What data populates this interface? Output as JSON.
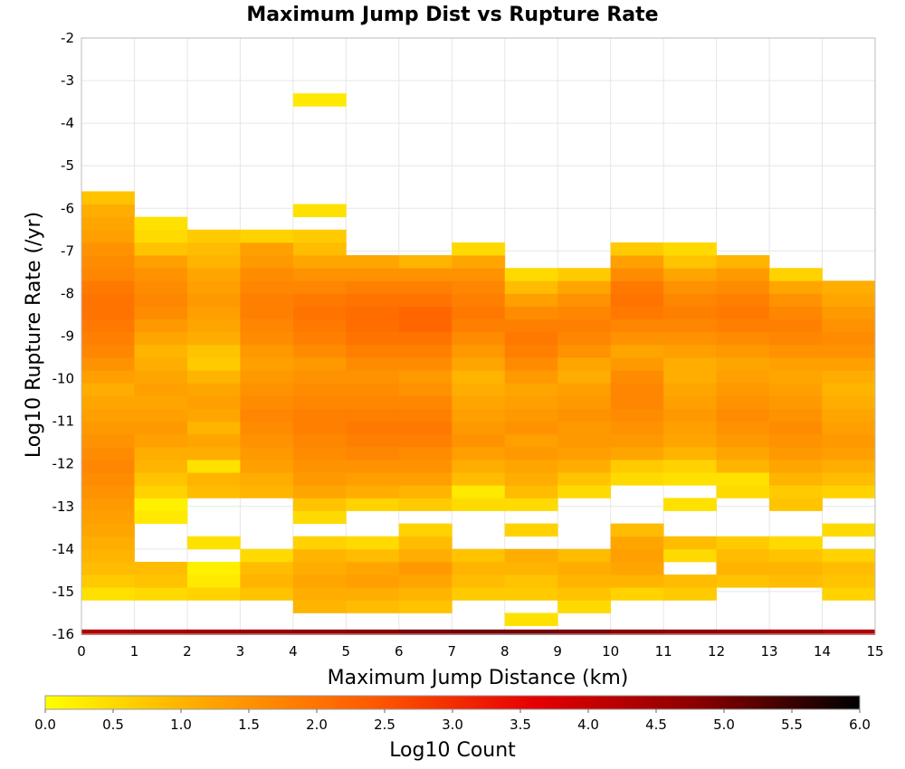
{
  "chart_data": {
    "type": "heatmap",
    "title": "Maximum Jump Dist vs Rupture Rate",
    "xlabel": "Maximum Jump Distance (km)",
    "ylabel": "Log10 Rupture Rate (/yr)",
    "colorbar_label": "Log10 Count",
    "xlim": [
      0,
      15
    ],
    "ylim": [
      -16,
      -2
    ],
    "x_ticks": [
      "0",
      "1",
      "2",
      "3",
      "4",
      "5",
      "6",
      "7",
      "8",
      "9",
      "10",
      "11",
      "12",
      "13",
      "14",
      "15"
    ],
    "y_ticks": [
      "-2",
      "-3",
      "-4",
      "-5",
      "-6",
      "-7",
      "-8",
      "-9",
      "-10",
      "-11",
      "-12",
      "-13",
      "-14",
      "-15",
      "-16"
    ],
    "colorbar_ticks": [
      "0.0",
      "0.5",
      "1.0",
      "1.5",
      "2.0",
      "2.5",
      "3.0",
      "3.5",
      "4.0",
      "4.5",
      "5.0",
      "5.5",
      "6.0"
    ],
    "color_range": [
      0,
      6
    ],
    "colormap": [
      "#ffff00",
      "#ffa500",
      "#ff5a00",
      "#e60000",
      "#8b0000",
      "#000000"
    ],
    "grid": true,
    "x_bin_width": 1,
    "y_bin_height": 0.3,
    "bin_columns": [
      {
        "x": 0.5,
        "y_start": -15.05,
        "values": [
          0.4,
          0.7,
          0.9,
          1.0,
          1.1,
          1.2,
          1.3,
          1.4,
          1.5,
          1.6,
          1.7,
          1.6,
          1.5,
          1.4,
          1.3,
          1.2,
          1.1,
          1.3,
          1.5,
          1.7,
          1.8,
          1.9,
          2.0,
          2.0,
          1.9,
          1.7,
          1.6,
          1.5,
          1.3,
          1.2,
          1.1,
          0.8
        ]
      },
      {
        "x": 1.5,
        "y_start": -15.05,
        "values": [
          0.5,
          0.8,
          0.9,
          0.0,
          0.0,
          0.0,
          0.3,
          0.2,
          0.6,
          0.8,
          1.0,
          1.1,
          1.3,
          1.4,
          1.3,
          1.2,
          1.3,
          1.2,
          1.1,
          1.0,
          1.2,
          1.4,
          1.6,
          1.7,
          1.6,
          1.5,
          1.3,
          0.8,
          0.5,
          0.4
        ]
      },
      {
        "x": 2.5,
        "y_start": -15.05,
        "values": [
          0.6,
          0.3,
          0.2,
          0.0,
          0.4,
          0.0,
          0.0,
          0.0,
          0.9,
          1.0,
          0.4,
          1.1,
          1.2,
          1.0,
          1.2,
          1.3,
          1.2,
          1.0,
          0.7,
          0.8,
          1.1,
          1.2,
          1.3,
          1.4,
          1.3,
          1.2,
          1.0,
          0.9,
          0.7
        ]
      },
      {
        "x": 3.5,
        "y_start": -15.05,
        "values": [
          0.8,
          1.0,
          0.9,
          0.5,
          0.0,
          0.0,
          0.0,
          0.0,
          1.0,
          1.1,
          1.3,
          1.4,
          1.5,
          1.6,
          1.7,
          1.6,
          1.5,
          1.4,
          1.3,
          1.4,
          1.6,
          1.7,
          1.8,
          1.8,
          1.7,
          1.6,
          1.4,
          1.3,
          0.6
        ]
      },
      {
        "x": 4.5,
        "y_start": -15.35,
        "values": [
          1.0,
          1.1,
          1.2,
          1.1,
          1.0,
          0.6,
          0.0,
          0.5,
          0.8,
          1.2,
          1.4,
          1.5,
          1.6,
          1.7,
          1.8,
          1.8,
          1.7,
          1.6,
          1.5,
          1.4,
          1.6,
          1.8,
          1.9,
          2.0,
          1.9,
          1.7,
          1.5,
          1.2,
          0.9,
          0.7,
          0.0,
          0.4
        ]
      },
      {
        "x": 5.5,
        "y_start": -15.35,
        "values": [
          0.9,
          1.1,
          1.3,
          1.2,
          0.9,
          0.5,
          0.0,
          0.0,
          0.6,
          1.1,
          1.3,
          1.5,
          1.7,
          1.8,
          1.9,
          1.8,
          1.7,
          1.6,
          1.5,
          1.6,
          1.8,
          2.0,
          2.1,
          2.1,
          2.0,
          1.8,
          1.5,
          1.2
        ]
      },
      {
        "x": 6.5,
        "y_start": -15.35,
        "values": [
          0.8,
          1.0,
          1.2,
          1.4,
          1.1,
          0.9,
          0.6,
          0.0,
          0.7,
          1.0,
          1.3,
          1.5,
          1.6,
          1.8,
          1.9,
          1.8,
          1.7,
          1.5,
          1.4,
          1.6,
          1.8,
          2.0,
          2.2,
          2.2,
          2.0,
          1.8,
          1.5,
          1.0
        ]
      },
      {
        "x": 7.5,
        "y_start": -15.05,
        "values": [
          0.7,
          0.9,
          1.0,
          0.8,
          0.0,
          0.0,
          0.0,
          0.5,
          0.3,
          0.9,
          1.1,
          1.3,
          1.5,
          1.4,
          1.3,
          1.2,
          1.1,
          1.0,
          1.2,
          1.4,
          1.6,
          1.8,
          1.9,
          1.8,
          1.7,
          1.5,
          1.2,
          0.5
        ]
      },
      {
        "x": 8.5,
        "y_start": -15.65,
        "values": [
          0.4,
          0.0,
          0.7,
          0.8,
          1.0,
          1.1,
          0.0,
          0.6,
          0.0,
          0.5,
          0.9,
          1.1,
          1.2,
          1.4,
          1.3,
          1.5,
          1.4,
          1.3,
          1.2,
          1.4,
          1.6,
          1.8,
          1.9,
          1.8,
          1.6,
          1.3,
          0.9,
          0.5
        ]
      },
      {
        "x": 9.5,
        "y_start": -15.35,
        "values": [
          0.5,
          0.8,
          1.0,
          1.1,
          0.9,
          0.0,
          0.0,
          0.0,
          0.0,
          0.5,
          0.8,
          1.1,
          1.3,
          1.4,
          1.4,
          1.5,
          1.4,
          1.3,
          1.1,
          1.2,
          1.5,
          1.7,
          1.8,
          1.7,
          1.5,
          1.2,
          0.7
        ]
      },
      {
        "x": 10.5,
        "y_start": -15.05,
        "values": [
          0.6,
          1.0,
          1.2,
          1.3,
          1.2,
          0.9,
          0.0,
          0.0,
          0.0,
          0.5,
          0.7,
          1.2,
          1.4,
          1.5,
          1.6,
          1.7,
          1.7,
          1.6,
          1.4,
          1.2,
          1.5,
          1.7,
          1.9,
          2.0,
          1.9,
          1.6,
          1.3,
          0.7
        ]
      },
      {
        "x": 11.5,
        "y_start": -15.05,
        "values": [
          0.7,
          0.9,
          0.0,
          0.5,
          0.9,
          0.0,
          0.0,
          0.4,
          0.0,
          0.4,
          0.6,
          1.0,
          1.2,
          1.3,
          1.4,
          1.3,
          1.2,
          1.1,
          1.1,
          1.3,
          1.5,
          1.7,
          1.8,
          1.7,
          1.5,
          1.2,
          0.8,
          0.5
        ]
      },
      {
        "x": 12.5,
        "y_start": -14.75,
        "values": [
          0.8,
          1.0,
          0.9,
          0.7,
          0.0,
          0.0,
          0.0,
          0.5,
          0.4,
          1.0,
          1.2,
          1.4,
          1.5,
          1.6,
          1.5,
          1.4,
          1.3,
          1.2,
          1.4,
          1.6,
          1.8,
          1.9,
          1.8,
          1.6,
          1.4,
          1.0
        ]
      },
      {
        "x": 13.5,
        "y_start": -14.75,
        "values": [
          0.9,
          1.0,
          0.8,
          0.5,
          0.0,
          0.0,
          0.8,
          0.7,
          1.0,
          1.2,
          1.4,
          1.5,
          1.6,
          1.5,
          1.4,
          1.3,
          1.2,
          1.3,
          1.5,
          1.7,
          1.8,
          1.7,
          1.5,
          1.2,
          0.6
        ]
      },
      {
        "x": 14.5,
        "y_start": -15.05,
        "values": [
          0.6,
          0.8,
          0.9,
          0.6,
          0.0,
          0.5,
          0.0,
          0.0,
          0.6,
          0.9,
          1.1,
          1.3,
          1.4,
          1.3,
          1.2,
          1.1,
          1.0,
          1.1,
          1.3,
          1.5,
          1.6,
          1.5,
          1.4,
          1.2,
          1.1
        ]
      }
    ],
    "bottom_row": {
      "y": -15.95,
      "values": [
        4.3,
        4.4,
        4.5,
        4.6,
        4.7,
        4.8,
        4.9,
        5.0,
        5.0,
        4.9,
        4.8,
        4.7,
        4.6,
        4.5,
        4.3
      ]
    },
    "extra_cells": [
      {
        "x": 4.5,
        "y": -3.45,
        "value": 0.3
      }
    ]
  }
}
